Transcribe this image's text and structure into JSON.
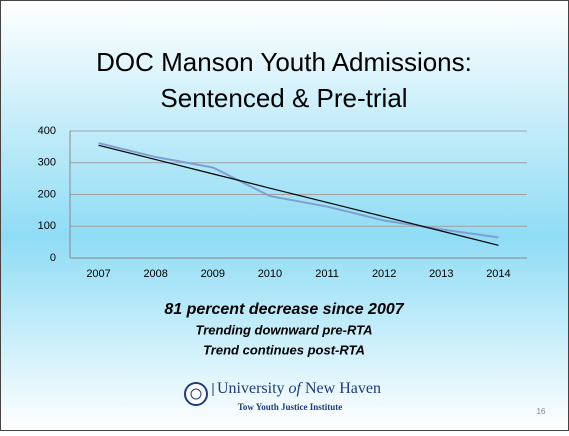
{
  "chart_data": {
    "type": "line",
    "title": [
      "DOC Manson Youth Admissions:",
      "Sentenced & Pre-trial"
    ],
    "categories": [
      "2007",
      "2008",
      "2009",
      "2010",
      "2011",
      "2012",
      "2013",
      "2014"
    ],
    "series": [
      {
        "color": "#7f9fd0",
        "values": [
          362,
          318,
          285,
          195,
          162,
          118,
          90,
          65
        ]
      },
      {
        "color": "#000000",
        "values": [
          355,
          310,
          265,
          220,
          175,
          130,
          85,
          40
        ]
      }
    ],
    "ylim": [
      0,
      400
    ],
    "yticks": [
      0,
      100,
      200,
      300,
      400
    ],
    "grid": true,
    "annotations": [
      "81 percent decrease since 2007",
      "Trending downward pre-RTA",
      "Trend continues post-RTA"
    ]
  },
  "footer": {
    "university": [
      "University",
      "of",
      "New Haven"
    ],
    "institute": "Tow Youth Justice Institute",
    "page": 16
  }
}
